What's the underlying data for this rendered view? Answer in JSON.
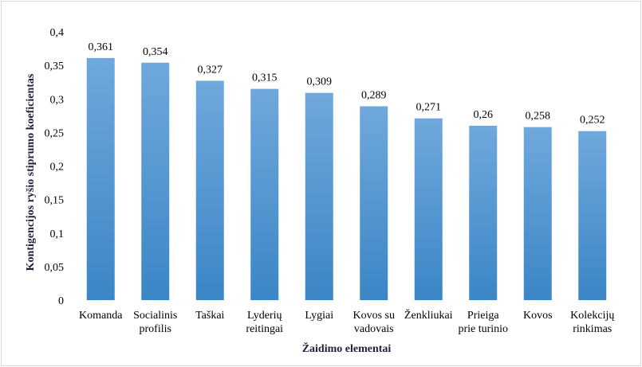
{
  "chart_data": {
    "type": "bar",
    "title": "",
    "xlabel": "Žaidimo elementai",
    "ylabel": "Kontigencijos ryšio stiprumo koeficientas",
    "ylim": [
      0,
      0.4
    ],
    "yticks": [
      "0",
      "0,05",
      "0,1",
      "0,15",
      "0,2",
      "0,25",
      "0,3",
      "0,35",
      "0,4"
    ],
    "ytick_values": [
      0,
      0.05,
      0.1,
      0.15,
      0.2,
      0.25,
      0.3,
      0.35,
      0.4
    ],
    "grid": false,
    "legend": "none",
    "bar_color_top": "#6fa8dc",
    "bar_color_bottom": "#3b86c6",
    "categories": [
      [
        "Komanda"
      ],
      [
        "Socialinis",
        "profilis"
      ],
      [
        "Taškai"
      ],
      [
        "Lyderių",
        "reitingai"
      ],
      [
        "Lygiai"
      ],
      [
        "Kovos su",
        "vadovais"
      ],
      [
        "Ženkliukai"
      ],
      [
        "Prieiga",
        "prie turinio"
      ],
      [
        "Kovos"
      ],
      [
        "Kolekcijų",
        "rinkimas"
      ]
    ],
    "values": [
      0.361,
      0.354,
      0.327,
      0.315,
      0.309,
      0.289,
      0.271,
      0.26,
      0.258,
      0.252
    ],
    "value_labels": [
      "0,361",
      "0,354",
      "0,327",
      "0,315",
      "0,309",
      "0,289",
      "0,271",
      "0,26",
      "0,258",
      "0,252"
    ]
  }
}
